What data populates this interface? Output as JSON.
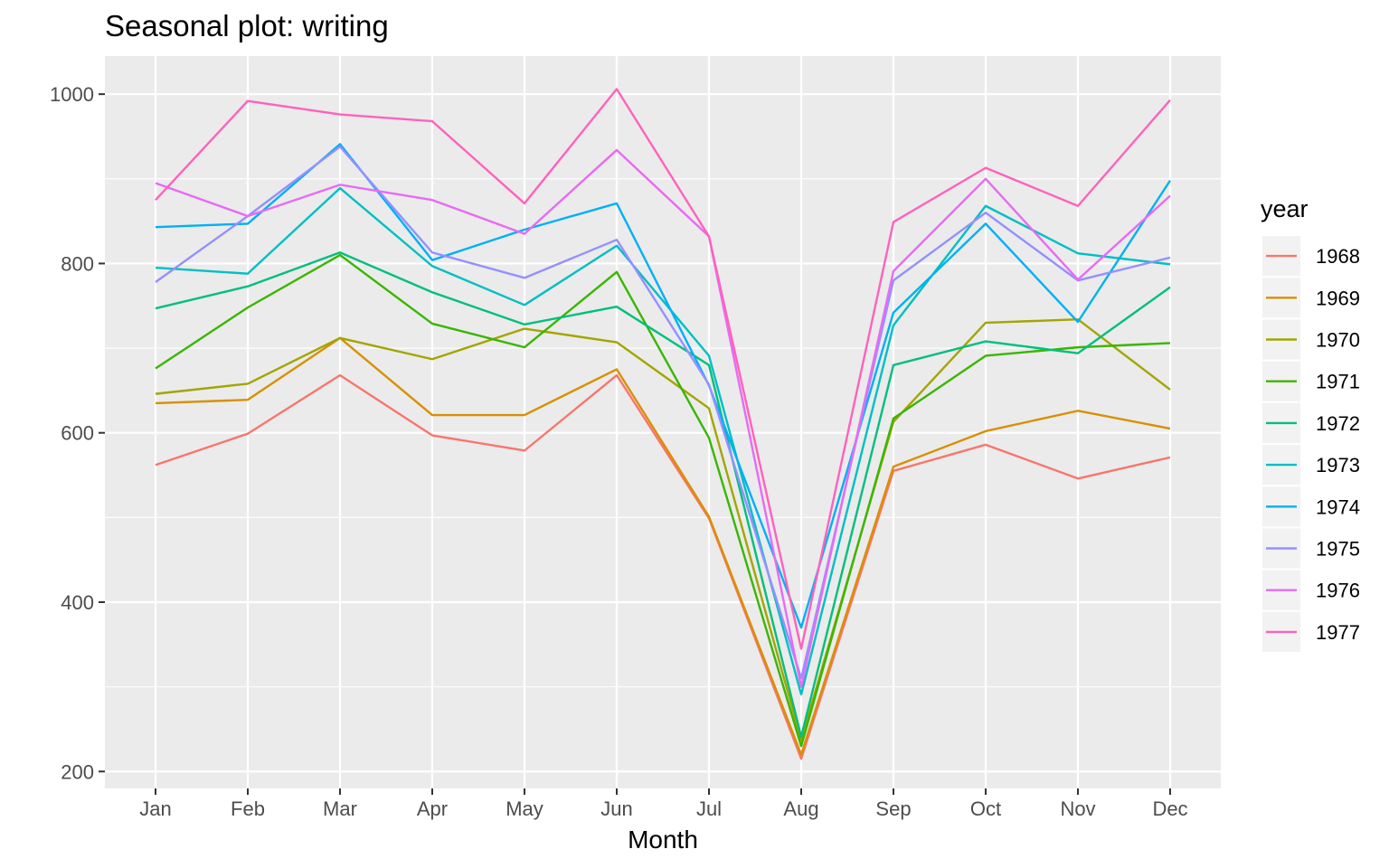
{
  "chart_data": {
    "type": "line",
    "title": "Seasonal plot: writing",
    "xlabel": "Month",
    "ylabel": "",
    "categories": [
      "Jan",
      "Feb",
      "Mar",
      "Apr",
      "May",
      "Jun",
      "Jul",
      "Aug",
      "Sep",
      "Oct",
      "Nov",
      "Dec"
    ],
    "ylim": [
      180,
      1045
    ],
    "yticks": [
      200,
      400,
      600,
      800,
      1000
    ],
    "grid": true,
    "legend_title": "year",
    "legend_position": "right",
    "series": [
      {
        "name": "1968",
        "color": "#F8766D",
        "values": [
          562,
          599,
          668,
          597,
          579,
          668,
          499,
          215,
          555,
          586,
          546,
          571
        ]
      },
      {
        "name": "1969",
        "color": "#D89000",
        "values": [
          635,
          639,
          712,
          621,
          621,
          675,
          501,
          220,
          560,
          602,
          626,
          605
        ]
      },
      {
        "name": "1970",
        "color": "#A3A500",
        "values": [
          646,
          658,
          712,
          687,
          723,
          707,
          629,
          237,
          613,
          730,
          734,
          651
        ]
      },
      {
        "name": "1971",
        "color": "#39B600",
        "values": [
          676,
          748,
          810,
          729,
          701,
          790,
          594,
          230,
          617,
          691,
          701,
          706
        ]
      },
      {
        "name": "1972",
        "color": "#00BF7D",
        "values": [
          747,
          773,
          813,
          766,
          728,
          749,
          680,
          241,
          680,
          708,
          694,
          772
        ]
      },
      {
        "name": "1973",
        "color": "#00BFC4",
        "values": [
          795,
          788,
          889,
          797,
          751,
          821,
          691,
          291,
          727,
          868,
          812,
          799
        ]
      },
      {
        "name": "1974",
        "color": "#00B0F6",
        "values": [
          843,
          847,
          941,
          804,
          840,
          871,
          656,
          370,
          742,
          847,
          731,
          898
        ]
      },
      {
        "name": "1975",
        "color": "#9590FF",
        "values": [
          778,
          856,
          938,
          813,
          783,
          828,
          657,
          310,
          780,
          860,
          780,
          807
        ]
      },
      {
        "name": "1976",
        "color": "#E76BF3",
        "values": [
          895,
          856,
          893,
          875,
          835,
          934,
          832,
          300,
          791,
          900,
          781,
          880
        ]
      },
      {
        "name": "1977",
        "color": "#FF62BC",
        "values": [
          875,
          992,
          976,
          968,
          871,
          1006,
          832,
          345,
          849,
          913,
          868,
          993
        ]
      }
    ]
  }
}
